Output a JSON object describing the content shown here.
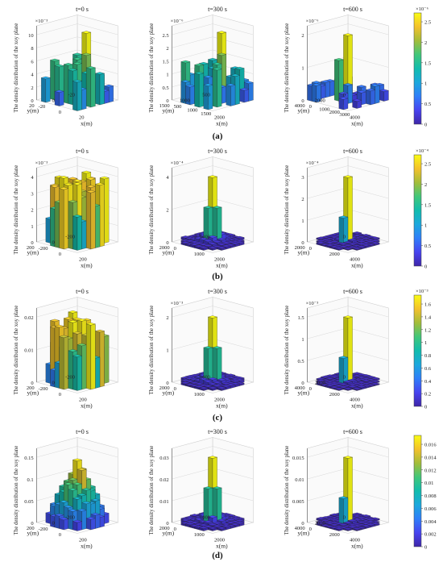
{
  "figure": {
    "colormap": [
      "#3e26a8",
      "#4743f0",
      "#2f7ef9",
      "#1ca8dd",
      "#12bcae",
      "#41c77a",
      "#a3bd3a",
      "#f4c12c",
      "#f9fb14"
    ],
    "common_labels": {
      "zlabel": "The density distribution of the xoy plane",
      "xlabel": "x(m)",
      "ylabel": "y(m)"
    }
  },
  "chart_data": [
    {
      "type": "3d-bar",
      "row": "(a)",
      "caption": "(a)",
      "colorbar": {
        "ticks": [
          "0",
          "0.5",
          "1",
          "1.5",
          "2",
          "2.5"
        ],
        "exponent": "×10⁻⁶"
      },
      "panels": [
        {
          "title": "t=0 s",
          "zexp": "×10⁻³",
          "zticks": [
            "0",
            "2",
            "4",
            "6",
            "8",
            "10"
          ],
          "yticks": [
            "20",
            "0",
            "-20"
          ],
          "xticks": [
            "-20",
            "0",
            "20"
          ],
          "zlim": [
            0,
            0.011
          ],
          "style": "sparse-tall"
        },
        {
          "title": "t=300 s",
          "zexp": "×10⁻⁶",
          "zticks": [
            "0",
            "0.5",
            "1",
            "1.5",
            "2",
            "2.5"
          ],
          "yticks": [
            "1500",
            "1000",
            "500"
          ],
          "xticks": [
            "500",
            "1000",
            "1500",
            "2000"
          ],
          "zlim": [
            0,
            2.7e-06
          ],
          "style": "sparse-tall"
        },
        {
          "title": "t=600 s",
          "zexp": "×10⁻⁶",
          "zticks": [
            "0",
            "1",
            "2"
          ],
          "yticks": [
            "4000",
            "2000",
            "0"
          ],
          "xticks": [
            "0",
            "1000",
            "2000",
            "3000",
            "4000"
          ],
          "zlim": [
            0,
            2.9e-06
          ],
          "style": "sparse-one"
        }
      ]
    },
    {
      "type": "3d-bar",
      "row": "(b)",
      "caption": "(b)",
      "colorbar": {
        "ticks": [
          "0",
          "0.5",
          "1",
          "1.5",
          "2",
          "2.5"
        ],
        "exponent": "×10⁻⁴"
      },
      "panels": [
        {
          "title": "t=0 s",
          "zexp": "×10⁻³",
          "zticks": [
            "0",
            "1",
            "2",
            "3",
            "4"
          ],
          "yticks": [
            "200",
            "0",
            "-200"
          ],
          "xticks": [
            "-200",
            "0",
            "200"
          ],
          "zlim": [
            0,
            0.0045
          ],
          "style": "dense"
        },
        {
          "title": "t=300 s",
          "zexp": "×10⁻⁴",
          "zticks": [
            "0",
            "2",
            "4"
          ],
          "yticks": [
            "2000",
            "1000"
          ],
          "xticks": [
            "0",
            "1000",
            "2000"
          ],
          "zlim": [
            0,
            0.0005
          ],
          "style": "peak"
        },
        {
          "title": "t=600 s",
          "zexp": "×10⁻⁴",
          "zticks": [
            "0",
            "1",
            "2",
            "3"
          ],
          "yticks": [
            "2000",
            "0"
          ],
          "xticks": [
            "0",
            "2000",
            "4000"
          ],
          "zlim": [
            0,
            0.00032
          ],
          "style": "spike"
        }
      ]
    },
    {
      "type": "3d-bar",
      "row": "(c)",
      "caption": "(c)",
      "colorbar": {
        "ticks": [
          "0",
          "0.2",
          "0.4",
          "0.6",
          "0.8",
          "1",
          "1.2",
          "1.4",
          "1.6"
        ],
        "exponent": "×10⁻³"
      },
      "panels": [
        {
          "title": "t=0 s",
          "zexp": "",
          "zticks": [
            "0",
            "0.01",
            "0.02"
          ],
          "yticks": [
            "200",
            "0",
            "-200"
          ],
          "xticks": [
            "-200",
            "0",
            "200"
          ],
          "zlim": [
            0,
            0.025
          ],
          "style": "dense"
        },
        {
          "title": "t=300 s",
          "zexp": "×10⁻³",
          "zticks": [
            "0",
            "1",
            "2"
          ],
          "yticks": [
            "2000",
            "1000"
          ],
          "xticks": [
            "0",
            "1000",
            "2000"
          ],
          "zlim": [
            0,
            0.0028
          ],
          "style": "peak"
        },
        {
          "title": "t=600 s",
          "zexp": "×10⁻³",
          "zticks": [
            "0",
            "0.5",
            "1",
            "1.5"
          ],
          "yticks": [
            "4000",
            "2000",
            "0"
          ],
          "xticks": [
            "0",
            "2000",
            "4000"
          ],
          "zlim": [
            0,
            0.0018
          ],
          "style": "spike"
        }
      ]
    },
    {
      "type": "3d-bar",
      "row": "(d)",
      "caption": "(d)",
      "colorbar": {
        "ticks": [
          "0",
          "0.002",
          "0.004",
          "0.006",
          "0.008",
          "0.01",
          "0.012",
          "0.014",
          "0.016"
        ],
        "exponent": ""
      },
      "panels": [
        {
          "title": "t=0 s",
          "zexp": "",
          "zticks": [
            "0",
            "0.05",
            "0.1",
            "0.15"
          ],
          "yticks": [
            "200",
            "0",
            "-200"
          ],
          "xticks": [
            "-200",
            "0",
            "200"
          ],
          "zlim": [
            0,
            0.18
          ],
          "style": "dome"
        },
        {
          "title": "t=300 s",
          "zexp": "",
          "zticks": [
            "0",
            "0.01",
            "0.02",
            "0.03"
          ],
          "yticks": [
            "2000",
            "1000"
          ],
          "xticks": [
            "0",
            "1000",
            "2000"
          ],
          "zlim": [
            0,
            0.035
          ],
          "style": "peak"
        },
        {
          "title": "t=600 s",
          "zexp": "",
          "zticks": [
            "0",
            "0.005",
            "0.01",
            "0.015"
          ],
          "yticks": [
            "4000",
            "2000",
            "0"
          ],
          "xticks": [
            "0",
            "2000",
            "4000"
          ],
          "zlim": [
            0,
            0.017
          ],
          "style": "spike"
        }
      ]
    }
  ]
}
